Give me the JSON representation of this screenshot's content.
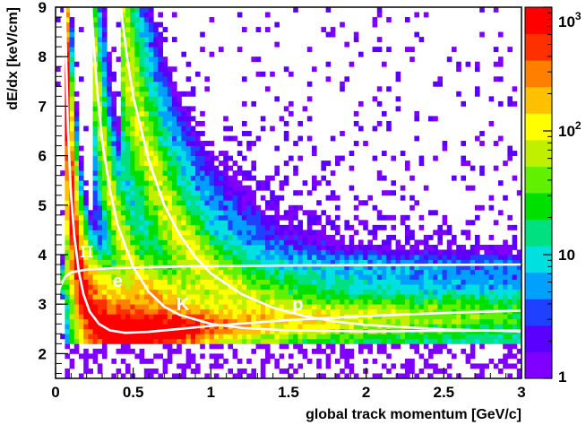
{
  "chart_data": {
    "type": "heatmap",
    "title": "",
    "xlabel": "global track momentum [GeV/c]",
    "ylabel": "dE/dx [keV/cm]",
    "xlim": [
      0,
      3
    ],
    "ylim": [
      1.5,
      9
    ],
    "x_ticks": [
      "0",
      "0.5",
      "1",
      "1.5",
      "2",
      "2.5",
      "3"
    ],
    "y_ticks": [
      "2",
      "3",
      "4",
      "5",
      "6",
      "7",
      "8",
      "9"
    ],
    "color_scale": {
      "type": "log",
      "range": [
        1,
        1000
      ],
      "labels": [
        {
          "base": "1",
          "exp": ""
        },
        {
          "base": "10",
          "exp": ""
        },
        {
          "base": "10",
          "exp": "2"
        },
        {
          "base": "10",
          "exp": "3"
        }
      ],
      "colors": [
        "#8000ff",
        "#5a00ff",
        "#2040ff",
        "#00a0ff",
        "#00e0e0",
        "#00e080",
        "#00e000",
        "#60f000",
        "#c0f000",
        "#ffff00",
        "#ffc000",
        "#ff8000",
        "#ff3000",
        "#ff0000"
      ]
    },
    "curve_labels": [
      {
        "name": "pi",
        "text": "π",
        "x": 0.2,
        "y": 3.95
      },
      {
        "name": "e",
        "text": "e",
        "x": 0.4,
        "y": 3.35
      },
      {
        "name": "K",
        "text": "K",
        "x": 0.82,
        "y": 2.88
      },
      {
        "name": "p",
        "text": "p",
        "x": 1.56,
        "y": 2.88
      }
    ],
    "bands": {
      "pi": [
        [
          0.06,
          9.0
        ],
        [
          0.08,
          6.5
        ],
        [
          0.1,
          5.2
        ],
        [
          0.12,
          4.4
        ],
        [
          0.15,
          3.65
        ],
        [
          0.18,
          3.2
        ],
        [
          0.22,
          2.85
        ],
        [
          0.28,
          2.6
        ],
        [
          0.35,
          2.47
        ],
        [
          0.45,
          2.42
        ],
        [
          0.6,
          2.44
        ],
        [
          0.8,
          2.5
        ],
        [
          1.0,
          2.56
        ],
        [
          1.5,
          2.68
        ],
        [
          2.0,
          2.76
        ],
        [
          2.5,
          2.82
        ],
        [
          3.0,
          2.87
        ]
      ],
      "K": [
        [
          0.23,
          9.0
        ],
        [
          0.26,
          7.6
        ],
        [
          0.3,
          6.3
        ],
        [
          0.35,
          5.3
        ],
        [
          0.4,
          4.6
        ],
        [
          0.5,
          3.75
        ],
        [
          0.6,
          3.25
        ],
        [
          0.7,
          2.95
        ],
        [
          0.8,
          2.78
        ],
        [
          1.0,
          2.6
        ],
        [
          1.2,
          2.52
        ],
        [
          1.5,
          2.47
        ],
        [
          2.0,
          2.45
        ],
        [
          2.5,
          2.46
        ],
        [
          3.0,
          2.47
        ]
      ],
      "p": [
        [
          0.42,
          9.0
        ],
        [
          0.46,
          8.0
        ],
        [
          0.5,
          7.2
        ],
        [
          0.6,
          5.9
        ],
        [
          0.7,
          5.0
        ],
        [
          0.8,
          4.4
        ],
        [
          0.9,
          3.95
        ],
        [
          1.0,
          3.62
        ],
        [
          1.2,
          3.2
        ],
        [
          1.4,
          2.93
        ],
        [
          1.6,
          2.76
        ],
        [
          1.8,
          2.65
        ],
        [
          2.0,
          2.58
        ],
        [
          2.5,
          2.49
        ],
        [
          3.0,
          2.45
        ]
      ],
      "e": [
        [
          0.0,
          3.0
        ],
        [
          0.03,
          3.35
        ],
        [
          0.06,
          3.55
        ],
        [
          0.1,
          3.64
        ],
        [
          0.2,
          3.7
        ],
        [
          0.4,
          3.73
        ],
        [
          0.8,
          3.76
        ],
        [
          1.5,
          3.78
        ],
        [
          3.0,
          3.8
        ]
      ]
    }
  }
}
